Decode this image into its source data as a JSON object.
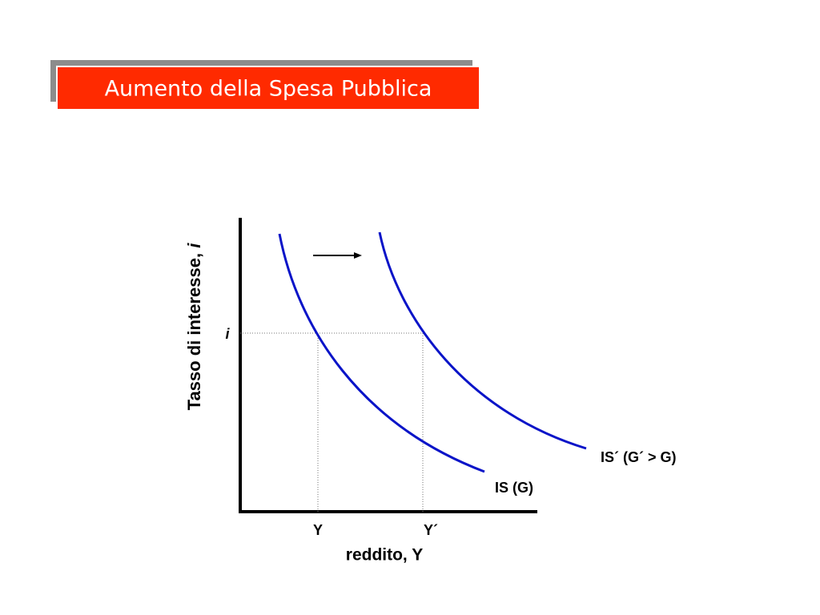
{
  "header": {
    "title": "Aumento della Spesa Pubblica"
  },
  "diagram": {
    "y_axis_label": {
      "text": "Tasso di interesse,",
      "variable": "i"
    },
    "x_axis_label": "reddito, Y",
    "y_marker": "i",
    "x_markers": [
      "Y",
      "Y´"
    ],
    "curves": [
      "IS (G)",
      "IS´ (G´ > G)"
    ]
  }
}
